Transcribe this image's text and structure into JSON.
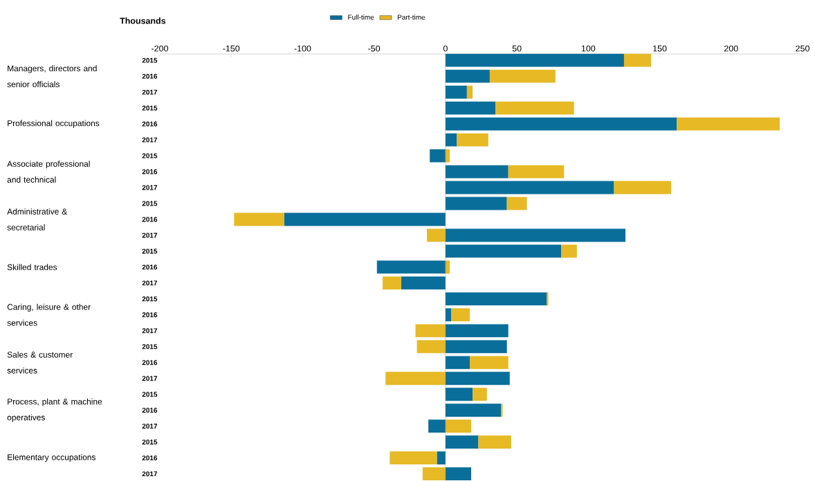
{
  "chart_data": {
    "type": "bar",
    "orientation": "horizontal",
    "stacked": true,
    "xlabel": "Thousands",
    "categories": [
      "2015",
      "2016",
      "2017",
      "2015",
      "2016",
      "2017",
      "2015",
      "2016",
      "2017",
      "2015",
      "2016",
      "2017",
      "2015",
      "2016",
      "2017",
      "2015",
      "2016",
      "2017",
      "2015",
      "2016",
      "2017",
      "2015",
      "2016",
      "2017",
      "2015",
      "2016",
      "2017"
    ],
    "series": [
      {
        "name": "Full-time",
        "color": "#0a6e9a",
        "values": [
          125,
          31,
          15,
          35,
          162,
          8,
          -11,
          44,
          118,
          43,
          -113,
          126,
          81,
          -48,
          -31,
          71,
          4,
          44,
          43,
          17,
          45,
          19,
          39,
          -12,
          23,
          -6,
          18
        ]
      },
      {
        "name": "Part-time",
        "color": "#e6b925",
        "values": [
          19,
          46,
          4,
          55,
          72,
          22,
          3,
          39,
          40,
          14,
          -35,
          -13,
          11,
          3,
          -13,
          1,
          13,
          -21,
          -20,
          27,
          -42,
          10,
          1,
          18,
          23,
          -33,
          -16
        ]
      }
    ],
    "xlim": [
      -200,
      250
    ],
    "xticks": [
      -200,
      -150,
      -100,
      -50,
      0,
      50,
      100,
      150,
      200,
      250
    ],
    "legend": "top",
    "annotations": [
      "Managers, directors and senior officials",
      "Professional occupations",
      "Associate professional and technical",
      "Administrative & secretarial",
      "Skilled trades",
      "Caring, leisure & other services",
      "Sales & customer services",
      "Process, plant & machine operatives",
      "Elementary occupations"
    ]
  }
}
